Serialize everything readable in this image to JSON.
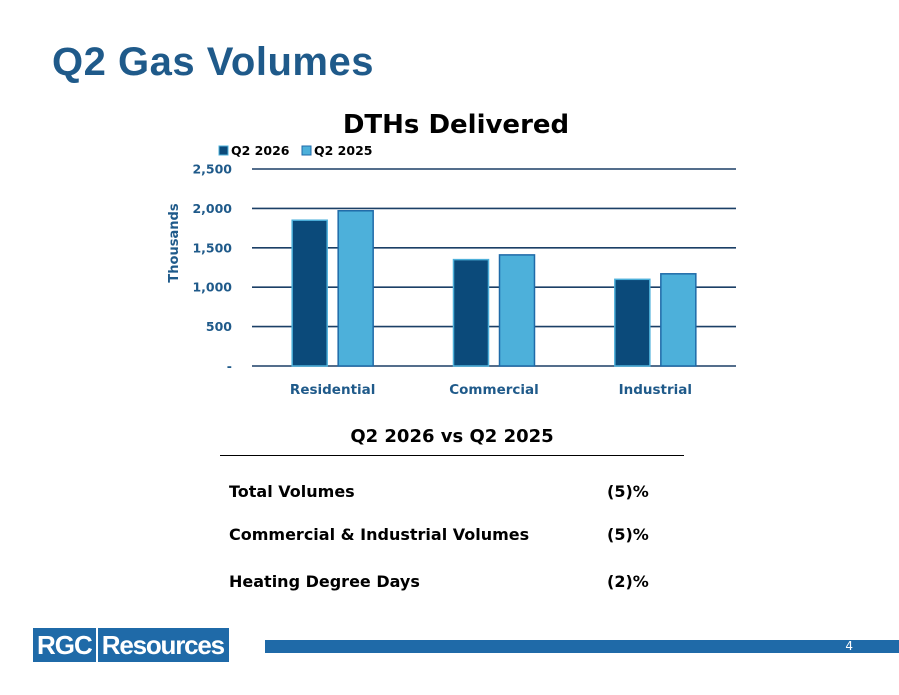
{
  "slide": {
    "title": "Q2 Gas Volumes",
    "page_number": "4"
  },
  "chart_data": {
    "type": "bar",
    "title": "DTHs Delivered",
    "ylabel": "Thousands",
    "xlabel": "",
    "categories": [
      "Residential",
      "Commercial",
      "Industrial"
    ],
    "series": [
      {
        "name": "Q2 2026",
        "values": [
          1850,
          1350,
          1100
        ],
        "color": "#0b4a7a"
      },
      {
        "name": "Q2 2025",
        "values": [
          1970,
          1410,
          1170
        ],
        "color": "#4db0da"
      }
    ],
    "ylim": [
      0,
      2500
    ],
    "yticks": [
      0,
      500,
      1000,
      1500,
      2000,
      2500
    ],
    "ytick_labels": [
      "-",
      "500",
      "1,000",
      "1,500",
      "2,000",
      "2,500"
    ],
    "legend_position": "top-left",
    "grid": true
  },
  "comparison": {
    "title": "Q2 2026 vs Q2 2025",
    "rows": [
      {
        "label": "Total Volumes",
        "value": "(5)%"
      },
      {
        "label": "Commercial & Industrial Volumes",
        "value": "(5)%"
      },
      {
        "label": "Heating Degree Days",
        "value": "(2)%"
      }
    ]
  },
  "logo": {
    "left_text": "RGC",
    "right_text": "Resources"
  }
}
